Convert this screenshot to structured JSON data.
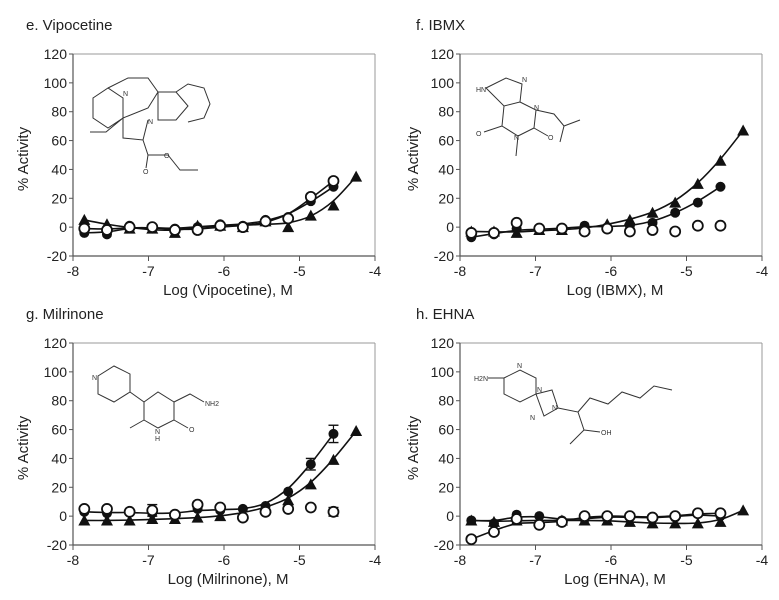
{
  "figure": {
    "panels": [
      {
        "id": "e",
        "title": "e. Vipocetine",
        "xlabel": "Log (Vipocetine), M",
        "ylabel": "%  Activity"
      },
      {
        "id": "f",
        "title": "f. IBMX",
        "xlabel": "Log (IBMX), M",
        "ylabel": "%  Activity"
      },
      {
        "id": "g",
        "title": "g. Milrinone",
        "xlabel": "Log (Milrinone), M",
        "ylabel": "%  Activity"
      },
      {
        "id": "h",
        "title": "h. EHNA",
        "xlabel": "Log (EHNA), M",
        "ylabel": "%  Activity"
      }
    ]
  },
  "chart_data": [
    {
      "type": "scatter",
      "title": "e. Vipocetine",
      "xlabel": "Log (Vipocetine), M",
      "ylabel": "% Activity",
      "xlim": [
        -8,
        -4
      ],
      "ylim": [
        -20,
        120
      ],
      "xticks": [
        -8,
        -7,
        -6,
        -5,
        -4
      ],
      "yticks": [
        -20,
        0,
        20,
        40,
        60,
        80,
        100,
        120
      ],
      "grid": false,
      "legend": null,
      "series": [
        {
          "name": "filled-triangle",
          "marker": "triangle-filled",
          "fit_curve": true,
          "x": [
            -7.85,
            -7.55,
            -7.25,
            -6.95,
            -6.65,
            -6.35,
            -6.05,
            -5.75,
            -5.45,
            -5.15,
            -4.85,
            -4.55,
            -4.25
          ],
          "y": [
            5,
            2,
            -1,
            -1,
            -4,
            1,
            1,
            0,
            4,
            0,
            8,
            15,
            35
          ]
        },
        {
          "name": "filled-circle",
          "marker": "circle-filled",
          "fit_curve": true,
          "x": [
            -7.85,
            -7.55,
            -7.25,
            -6.95,
            -6.65,
            -6.35,
            -6.05,
            -5.75,
            -5.45,
            -5.15,
            -4.85,
            -4.55
          ],
          "y": [
            -4,
            -5,
            1,
            -1,
            -1,
            0,
            2,
            1,
            5,
            7,
            18,
            28
          ]
        },
        {
          "name": "open-circle",
          "marker": "circle-open",
          "fit_curve": true,
          "x": [
            -7.85,
            -7.55,
            -7.25,
            -6.95,
            -6.65,
            -6.35,
            -6.05,
            -5.75,
            -5.45,
            -5.15,
            -4.85,
            -4.55
          ],
          "y": [
            -1,
            -2,
            0,
            0,
            -2,
            -2,
            1,
            0,
            4,
            6,
            21,
            32
          ]
        }
      ]
    },
    {
      "type": "scatter",
      "title": "f. IBMX",
      "xlabel": "Log (IBMX), M",
      "ylabel": "% Activity",
      "xlim": [
        -8,
        -4
      ],
      "ylim": [
        -20,
        120
      ],
      "xticks": [
        -8,
        -7,
        -6,
        -5,
        -4
      ],
      "yticks": [
        -20,
        0,
        20,
        40,
        60,
        80,
        100,
        120
      ],
      "grid": false,
      "legend": null,
      "series": [
        {
          "name": "filled-triangle",
          "marker": "triangle-filled",
          "fit_curve": true,
          "x": [
            -7.85,
            -7.55,
            -7.25,
            -6.95,
            -6.65,
            -6.35,
            -6.05,
            -5.75,
            -5.45,
            -5.15,
            -4.85,
            -4.55,
            -4.25
          ],
          "y": [
            -3,
            -3,
            -4,
            -2,
            -2,
            -1,
            2,
            5,
            10,
            17,
            30,
            46,
            67
          ]
        },
        {
          "name": "filled-circle",
          "marker": "circle-filled",
          "fit_curve": true,
          "x": [
            -7.85,
            -7.55,
            -7.25,
            -6.95,
            -6.65,
            -6.35,
            -6.05,
            -5.75,
            -5.45,
            -5.15,
            -4.85,
            -4.55
          ],
          "y": [
            -7,
            -5,
            -1,
            -2,
            -1,
            1,
            0,
            1,
            3,
            10,
            17,
            28
          ]
        },
        {
          "name": "open-circle",
          "marker": "circle-open",
          "fit_curve": false,
          "x": [
            -7.85,
            -7.55,
            -7.25,
            -6.95,
            -6.65,
            -6.35,
            -6.05,
            -5.75,
            -5.45,
            -5.15,
            -4.85,
            -4.55
          ],
          "y": [
            -4,
            -4,
            3,
            -1,
            -1,
            -3,
            -1,
            -3,
            -2,
            -3,
            1,
            1
          ]
        }
      ]
    },
    {
      "type": "scatter",
      "title": "g. Milrinone",
      "xlabel": "Log (Milrinone), M",
      "ylabel": "% Activity",
      "xlim": [
        -8,
        -4
      ],
      "ylim": [
        -20,
        120
      ],
      "xticks": [
        -8,
        -7,
        -6,
        -5,
        -4
      ],
      "yticks": [
        -20,
        0,
        20,
        40,
        60,
        80,
        100,
        120
      ],
      "grid": false,
      "legend": null,
      "series": [
        {
          "name": "filled-triangle",
          "marker": "triangle-filled",
          "fit_curve": true,
          "x": [
            -7.85,
            -7.55,
            -7.25,
            -6.95,
            -6.65,
            -6.35,
            -6.05,
            -5.75,
            -5.45,
            -5.15,
            -4.85,
            -4.55,
            -4.25
          ],
          "y": [
            -3,
            -3,
            -3,
            -2,
            -2,
            -1,
            0,
            2,
            6,
            11,
            22,
            39,
            59
          ]
        },
        {
          "name": "filled-circle",
          "marker": "circle-filled",
          "fit_curve": true,
          "x": [
            -7.85,
            -7.55,
            -7.25,
            -6.95,
            -6.65,
            -6.35,
            -6.05,
            -5.75,
            -5.45,
            -5.15,
            -4.85,
            -4.55
          ],
          "y": [
            3,
            2,
            3,
            2,
            1,
            5,
            4,
            5,
            7,
            17,
            36,
            57
          ],
          "error": [
            0,
            0,
            0,
            0,
            0,
            0,
            0,
            0,
            0,
            0,
            4,
            6
          ]
        },
        {
          "name": "open-circle",
          "marker": "circle-open",
          "fit_curve": false,
          "x": [
            -7.85,
            -7.55,
            -7.25,
            -6.95,
            -6.65,
            -6.35,
            -6.05,
            -5.75,
            -5.45,
            -5.15,
            -4.85,
            -4.55
          ],
          "y": [
            5,
            5,
            3,
            4,
            1,
            8,
            6,
            -1,
            3,
            5,
            6,
            3
          ],
          "error": [
            0,
            0,
            0,
            4,
            0,
            0,
            0,
            0,
            0,
            0,
            0,
            3
          ]
        }
      ]
    },
    {
      "type": "scatter",
      "title": "h. EHNA",
      "xlabel": "Log (EHNA), M",
      "ylabel": "% Activity",
      "xlim": [
        -8,
        -4
      ],
      "ylim": [
        -20,
        120
      ],
      "xticks": [
        -8,
        -7,
        -6,
        -5,
        -4
      ],
      "yticks": [
        -20,
        0,
        20,
        40,
        60,
        80,
        100,
        120
      ],
      "grid": false,
      "legend": null,
      "series": [
        {
          "name": "filled-triangle",
          "marker": "triangle-filled",
          "fit_curve": true,
          "x": [
            -7.85,
            -7.55,
            -7.25,
            -6.95,
            -6.65,
            -6.35,
            -6.05,
            -5.75,
            -5.45,
            -5.15,
            -4.85,
            -4.55,
            -4.25
          ],
          "y": [
            -3,
            -4,
            -3,
            -3,
            -3,
            -3,
            -3,
            -4,
            -5,
            -5,
            -5,
            -4,
            4
          ]
        },
        {
          "name": "filled-circle",
          "marker": "circle-filled",
          "fit_curve": true,
          "x": [
            -7.85,
            -7.55,
            -7.25,
            -6.95,
            -6.65,
            -6.35,
            -6.05,
            -5.75,
            -5.45,
            -5.15,
            -4.85,
            -4.55
          ],
          "y": [
            -3,
            -5,
            1,
            0,
            -3,
            -2,
            0,
            -1,
            -1,
            -1,
            2,
            0
          ]
        },
        {
          "name": "open-circle",
          "marker": "circle-open",
          "fit_curve": true,
          "x": [
            -7.85,
            -7.55,
            -7.25,
            -6.95,
            -6.65,
            -6.35,
            -6.05,
            -5.75,
            -5.45,
            -5.15,
            -4.85,
            -4.55
          ],
          "y": [
            -16,
            -11,
            -2,
            -6,
            -4,
            0,
            0,
            0,
            -1,
            0,
            2,
            2
          ]
        }
      ]
    }
  ],
  "structures": {
    "e": {
      "name": "vinpocetine",
      "atoms": [
        "N",
        "N",
        "O",
        "O"
      ]
    },
    "f": {
      "name": "IBMX",
      "atoms": [
        "HN",
        "N",
        "N",
        "N",
        "O",
        "O"
      ]
    },
    "g": {
      "name": "milrinone",
      "atoms": [
        "N",
        "NH2",
        "N",
        "H",
        "O"
      ]
    },
    "h": {
      "name": "EHNA",
      "atoms": [
        "H2N",
        "N",
        "N",
        "N",
        "N",
        "OH"
      ]
    }
  }
}
